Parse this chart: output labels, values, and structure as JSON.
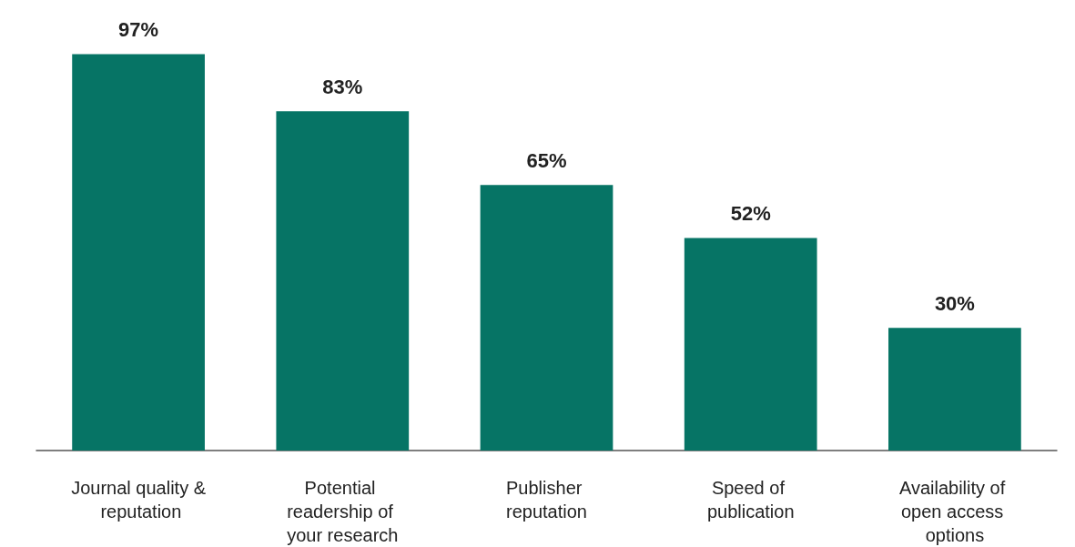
{
  "chart_data": {
    "type": "bar",
    "categories": [
      "Journal quality & reputation",
      "Potential readership of your research",
      "Publisher reputation",
      "Speed of publication",
      "Availability of open access options"
    ],
    "values": [
      97,
      83,
      65,
      52,
      30
    ],
    "value_labels": [
      "97%",
      "83%",
      "65%",
      "52%",
      "30%"
    ],
    "color": "#067465"
  }
}
